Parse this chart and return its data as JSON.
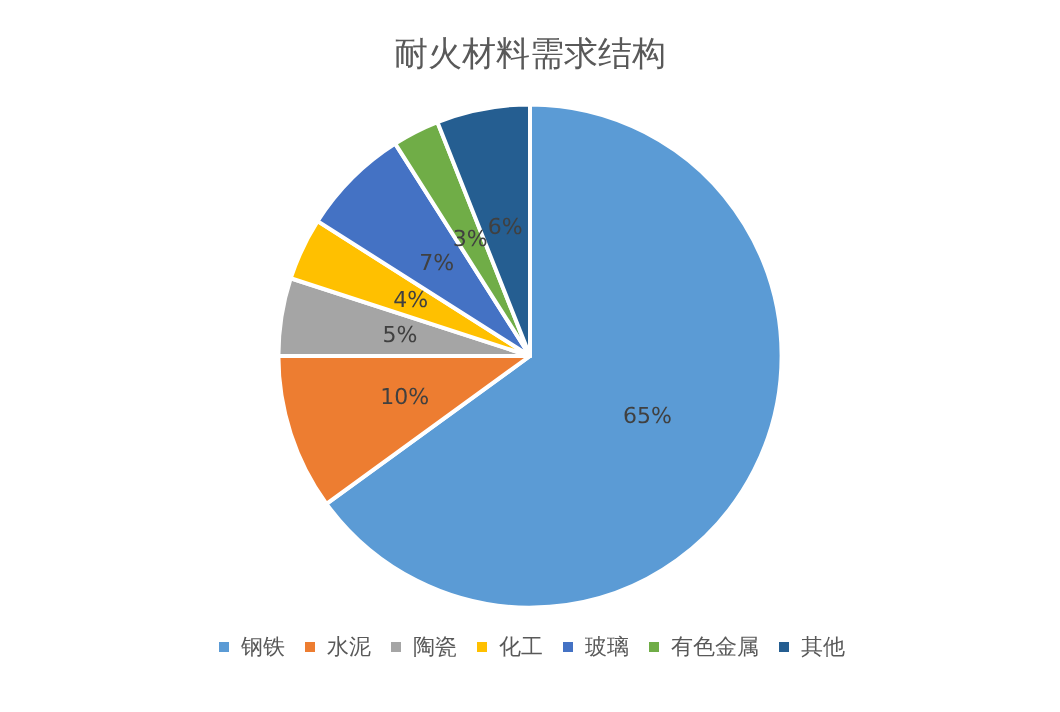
{
  "chart_data": {
    "type": "pie",
    "title": "耐火材料需求结构",
    "categories": [
      "钢铁",
      "水泥",
      "陶瓷",
      "化工",
      "玻璃",
      "有色金属",
      "其他"
    ],
    "values": [
      65,
      10,
      5,
      4,
      7,
      3,
      6
    ],
    "colors": [
      "#5b9bd5",
      "#ed7d31",
      "#a5a5a5",
      "#ffc000",
      "#4472c4",
      "#70ad47",
      "#255e91"
    ],
    "value_labels": [
      "65%",
      "10%",
      "5%",
      "4%",
      "7%",
      "3%",
      "6%"
    ],
    "legend": "bottom"
  }
}
